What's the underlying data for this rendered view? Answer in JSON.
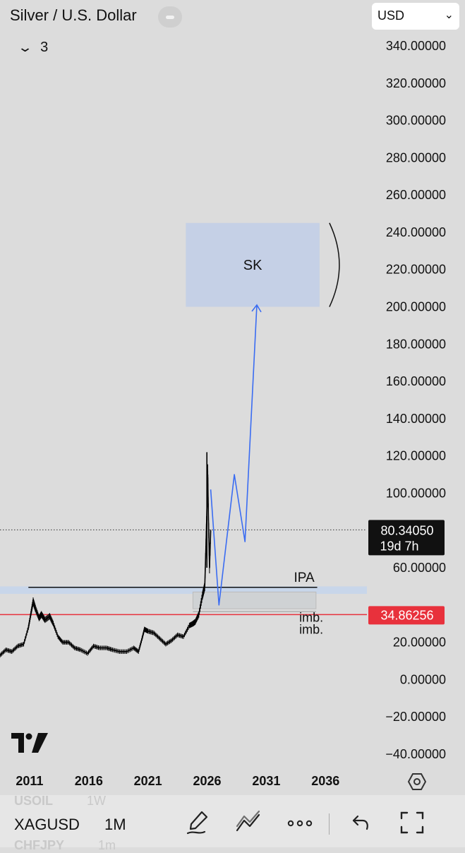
{
  "header": {
    "title": "Silver / U.S. Dollar",
    "currency": "USD",
    "indicator_count": "3"
  },
  "chart_data": {
    "type": "line",
    "title": "Silver / U.S. Dollar",
    "symbol": "XAGUSD",
    "interval": "1M",
    "yticks": [
      340,
      320,
      300,
      280,
      260,
      240,
      220,
      200,
      180,
      160,
      140,
      120,
      100,
      80,
      60,
      40,
      20,
      0,
      -20,
      -40
    ],
    "ytick_labels": [
      "340.00000",
      "320.00000",
      "300.00000",
      "280.00000",
      "260.00000",
      "240.00000",
      "220.00000",
      "200.00000",
      "180.00000",
      "160.00000",
      "140.00000",
      "120.00000",
      "100.00000",
      "",
      "60.00000",
      "",
      "20.00000",
      "0.00000",
      "−20.00000",
      "−40.00000"
    ],
    "xticks": [
      2011,
      2016,
      2021,
      2026,
      2031,
      2036
    ],
    "xtick_labels": [
      "2011",
      "2016",
      "2021",
      "2026",
      "2031",
      "2036"
    ],
    "ylim": [
      -40,
      340
    ],
    "xlim": [
      2008.5,
      2039.5
    ],
    "price_series": {
      "x": [
        2008.5,
        2009.0,
        2009.5,
        2010.0,
        2010.5,
        2010.9,
        2011.1,
        2011.3,
        2011.5,
        2011.8,
        2012.0,
        2012.3,
        2012.7,
        2013.0,
        2013.4,
        2013.8,
        2014.3,
        2014.8,
        2015.3,
        2015.9,
        2016.4,
        2016.9,
        2017.5,
        2018.0,
        2018.6,
        2019.2,
        2019.8,
        2020.2,
        2020.5,
        2020.7,
        2021.0,
        2021.5,
        2022.0,
        2022.5,
        2023.0,
        2023.5,
        2024.0,
        2024.5,
        2024.8,
        2025.0,
        2025.3,
        2025.6,
        2025.8,
        2025.9,
        2026.0,
        2026.05,
        2026.1,
        2026.2,
        2026.3
      ],
      "y": [
        13,
        16,
        15,
        18,
        19,
        28,
        35,
        42,
        38,
        33,
        35,
        32,
        34,
        30,
        23,
        20,
        20,
        17,
        16,
        14,
        18,
        17,
        17,
        16,
        15,
        15,
        17,
        15,
        22,
        27,
        26,
        25,
        22,
        19,
        21,
        24,
        23,
        29,
        30,
        31,
        35,
        45,
        50,
        72,
        95,
        110,
        90,
        60,
        80
      ]
    },
    "current_price": "80.34050",
    "countdown": "19d 7h",
    "current_price_value": 80.3405,
    "red_level": "34.86256",
    "red_level_value": 34.86256,
    "projection_path": {
      "x": [
        2026.3,
        2027.0,
        2028.3,
        2029.2,
        2030.2
      ],
      "y": [
        102,
        40,
        110,
        74,
        201
      ]
    },
    "annotations": {
      "ipa_label": "IPA",
      "ipa_level": 49.5,
      "sk_label": "SK",
      "sk_zone": {
        "x0": 2024.2,
        "x1": 2035.5,
        "y0": 200,
        "y1": 245
      },
      "imb_labels": [
        "imb.",
        "imb."
      ],
      "imb_zone": {
        "x0": 2024.8,
        "x1": 2035.2,
        "y0": 38,
        "y1": 47
      },
      "blue_band": {
        "y0": 46,
        "y1": 50
      }
    },
    "grid": false,
    "colors": {
      "price": "#000000",
      "projection": "#3a6cf2",
      "red_level": "#e8313c",
      "sk_zone": "#c5d0e6",
      "blue_band": "#c8d6ea",
      "imb_zone": "#cfd2d4"
    }
  },
  "bottom_bar": {
    "symbol": "XAGUSD",
    "interval": "1M",
    "ghost_rows": [
      {
        "symbol": "USOIL",
        "interval": "1W"
      },
      {
        "symbol": "CHFJPY",
        "interval": "1m"
      }
    ],
    "icons": [
      "draw-icon",
      "indicators-icon",
      "more-icon",
      "undo-icon",
      "fullscreen-icon"
    ]
  }
}
